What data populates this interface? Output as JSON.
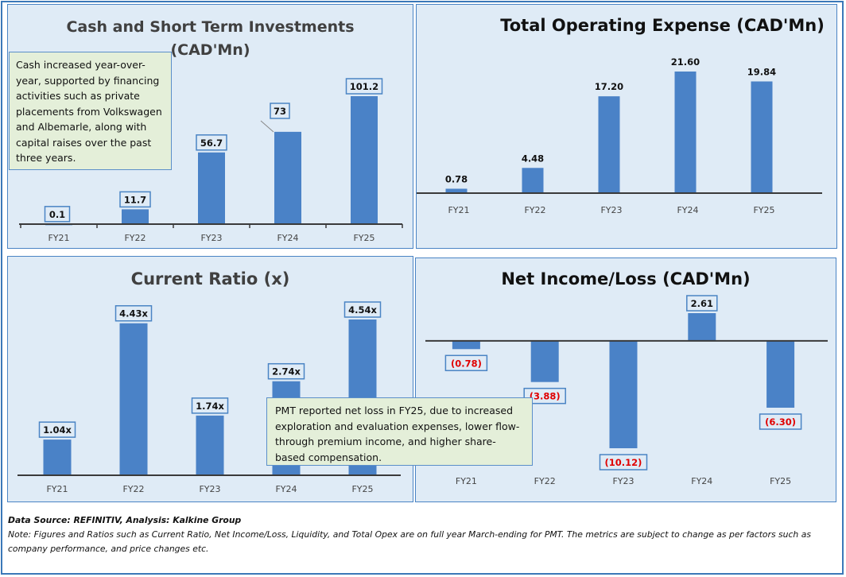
{
  "colors": {
    "bar": "#4a82c7",
    "panel_bg": "#dfebf6",
    "panel_border": "#4a84c4",
    "note_bg": "#e4efd9",
    "negative_label": "#e00000",
    "axis": "#3a3a3a"
  },
  "chart_data": [
    {
      "id": "cash",
      "type": "bar",
      "title": "Cash and Short Term Investments (CAD'Mn)",
      "title_lines": [
        "Cash and Short Term Investments",
        "(CAD'Mn)"
      ],
      "categories": [
        "FY21",
        "FY22",
        "FY23",
        "FY24",
        "FY25"
      ],
      "values": [
        0.1,
        11.7,
        56.7,
        73,
        101.2
      ],
      "labels": [
        "0.1",
        "11.7",
        "56.7",
        "73",
        "101.2"
      ],
      "xlabel": "",
      "ylabel": "",
      "ylim": [
        0,
        101.2
      ],
      "grid": false,
      "boxed_labels": true,
      "annotation": "Cash increased year-over-year, supported by financing activities such as private placements from Volkswagen and Albemarle, along with capital raises over the past three years."
    },
    {
      "id": "opex",
      "type": "bar",
      "title": "Total Operating Expense (CAD'Mn)",
      "title_lines": [
        "Total Operating Expense (CAD'Mn)"
      ],
      "categories": [
        "FY21",
        "FY22",
        "FY23",
        "FY24",
        "FY25"
      ],
      "values": [
        0.78,
        4.48,
        17.2,
        21.6,
        19.84
      ],
      "labels": [
        "0.78",
        "4.48",
        "17.20",
        "21.60",
        "19.84"
      ],
      "xlabel": "",
      "ylabel": "",
      "ylim": [
        0,
        21.6
      ],
      "grid": false,
      "boxed_labels": false
    },
    {
      "id": "ratio",
      "type": "bar",
      "title": "Current Ratio (x)",
      "title_lines": [
        "Current Ratio (x)"
      ],
      "categories": [
        "FY21",
        "FY22",
        "FY23",
        "FY24",
        "FY25"
      ],
      "values": [
        1.04,
        4.43,
        1.74,
        2.74,
        4.54
      ],
      "labels": [
        "1.04x",
        "4.43x",
        "1.74x",
        "2.74x",
        "4.54x"
      ],
      "xlabel": "",
      "ylabel": "",
      "ylim": [
        0,
        4.54
      ],
      "grid": false,
      "boxed_labels": true
    },
    {
      "id": "netincome",
      "type": "bar",
      "title": "Net Income/Loss (CAD'Mn)",
      "title_lines": [
        "Net Income/Loss (CAD'Mn)"
      ],
      "categories": [
        "FY21",
        "FY22",
        "FY23",
        "FY24",
        "FY25"
      ],
      "values": [
        -0.78,
        -3.88,
        -10.12,
        2.61,
        -6.3
      ],
      "labels": [
        "(0.78)",
        "(3.88)",
        "(10.12)",
        "2.61",
        "(6.30)"
      ],
      "xlabel": "",
      "ylabel": "",
      "ylim": [
        -10.12,
        2.61
      ],
      "grid": false,
      "boxed_labels": true,
      "annotation": "PMT reported net loss in FY25, due to increased exploration and evaluation expenses, lower flow-through premium income, and higher share-based compensation."
    }
  ],
  "footer": {
    "source": "Data Source: REFINITIV, Analysis: Kalkine Group",
    "note": "Note: Figures and Ratios such as Current Ratio, Net Income/Loss, Liquidity, and Total Opex are on full year March-ending for PMT. The metrics are subject to change as per factors such as company performance, and price changes etc."
  }
}
